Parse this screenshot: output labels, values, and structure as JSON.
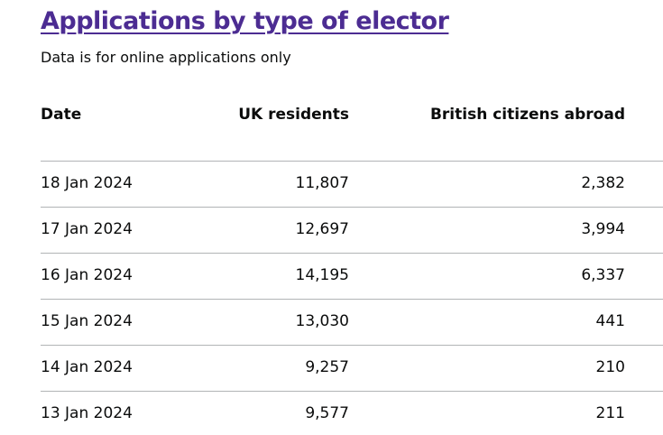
{
  "header": {
    "title": "Applications by type of elector",
    "subtitle": "Data is for online applications only"
  },
  "table": {
    "columns": [
      "Date",
      "UK residents",
      "British citizens abroad"
    ],
    "rows": [
      [
        "18 Jan 2024",
        "11,807",
        "2,382"
      ],
      [
        "17 Jan 2024",
        "12,697",
        "3,994"
      ],
      [
        "16 Jan 2024",
        "14,195",
        "6,337"
      ],
      [
        "15 Jan 2024",
        "13,030",
        "441"
      ],
      [
        "14 Jan 2024",
        "9,257",
        "210"
      ],
      [
        "13 Jan 2024",
        "9,577",
        "211"
      ]
    ]
  }
}
